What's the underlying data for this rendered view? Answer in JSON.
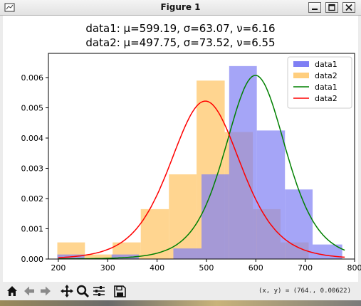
{
  "window": {
    "title": "Figure 1"
  },
  "chart_data": {
    "type": "histogram-with-fit",
    "title_line1": "data1: μ=599.19, σ=63.07, ν=6.16",
    "title_line2": "data2: μ=497.75, σ=73.52, ν=6.55",
    "xlim": [
      180,
      800
    ],
    "ylim": [
      0,
      0.0068
    ],
    "xticks": [
      200,
      300,
      400,
      500,
      600,
      700,
      800
    ],
    "yticks": [
      0.0,
      0.001,
      0.002,
      0.003,
      0.004,
      0.005,
      0.006
    ],
    "legend_position": "top-right",
    "histograms": [
      {
        "name": "data1",
        "color": "#7f7ff4",
        "bins": [
          {
            "x0": 198,
            "x1": 253,
            "y": 0.00015
          },
          {
            "x0": 308,
            "x1": 363,
            "y": 0.00015
          },
          {
            "x0": 433,
            "x1": 490,
            "y": 0.00035
          },
          {
            "x0": 490,
            "x1": 546,
            "y": 0.0028
          },
          {
            "x0": 546,
            "x1": 602,
            "y": 0.00638
          },
          {
            "x0": 602,
            "x1": 659,
            "y": 0.00425
          },
          {
            "x0": 659,
            "x1": 715,
            "y": 0.0023
          },
          {
            "x0": 715,
            "x1": 775,
            "y": 0.00048
          }
        ]
      },
      {
        "name": "data2",
        "color": "#ffce7d",
        "bins": [
          {
            "x0": 198,
            "x1": 254,
            "y": 0.00055
          },
          {
            "x0": 254,
            "x1": 310,
            "y": 0.00015
          },
          {
            "x0": 310,
            "x1": 367,
            "y": 0.00055
          },
          {
            "x0": 367,
            "x1": 424,
            "y": 0.00165
          },
          {
            "x0": 424,
            "x1": 480,
            "y": 0.0028
          },
          {
            "x0": 480,
            "x1": 537,
            "y": 0.0059
          },
          {
            "x0": 537,
            "x1": 594,
            "y": 0.0042
          },
          {
            "x0": 594,
            "x1": 650,
            "y": 0.00165
          },
          {
            "x0": 650,
            "x1": 707,
            "y": 0.00055
          }
        ]
      }
    ],
    "fits": [
      {
        "name": "data1",
        "color": "#008000",
        "mu": 599.19,
        "sigma": 63.07,
        "nu": 6.16
      },
      {
        "name": "data2",
        "color": "#ff0000",
        "mu": 497.75,
        "sigma": 73.52,
        "nu": 6.55
      }
    ],
    "legend": [
      {
        "label": "data1",
        "kind": "patch",
        "color": "#7f7ff4"
      },
      {
        "label": "data2",
        "kind": "patch",
        "color": "#ffce7d"
      },
      {
        "label": "data1",
        "kind": "line",
        "color": "#008000"
      },
      {
        "label": "data2",
        "kind": "line",
        "color": "#ff0000"
      }
    ]
  },
  "toolbar": {
    "buttons": [
      "home-icon",
      "back-icon",
      "forward-icon",
      "pan-icon",
      "zoom-icon",
      "configure-subplots-icon",
      "save-icon"
    ],
    "coords_text": "(x, y) = (764., 0.00622)"
  }
}
